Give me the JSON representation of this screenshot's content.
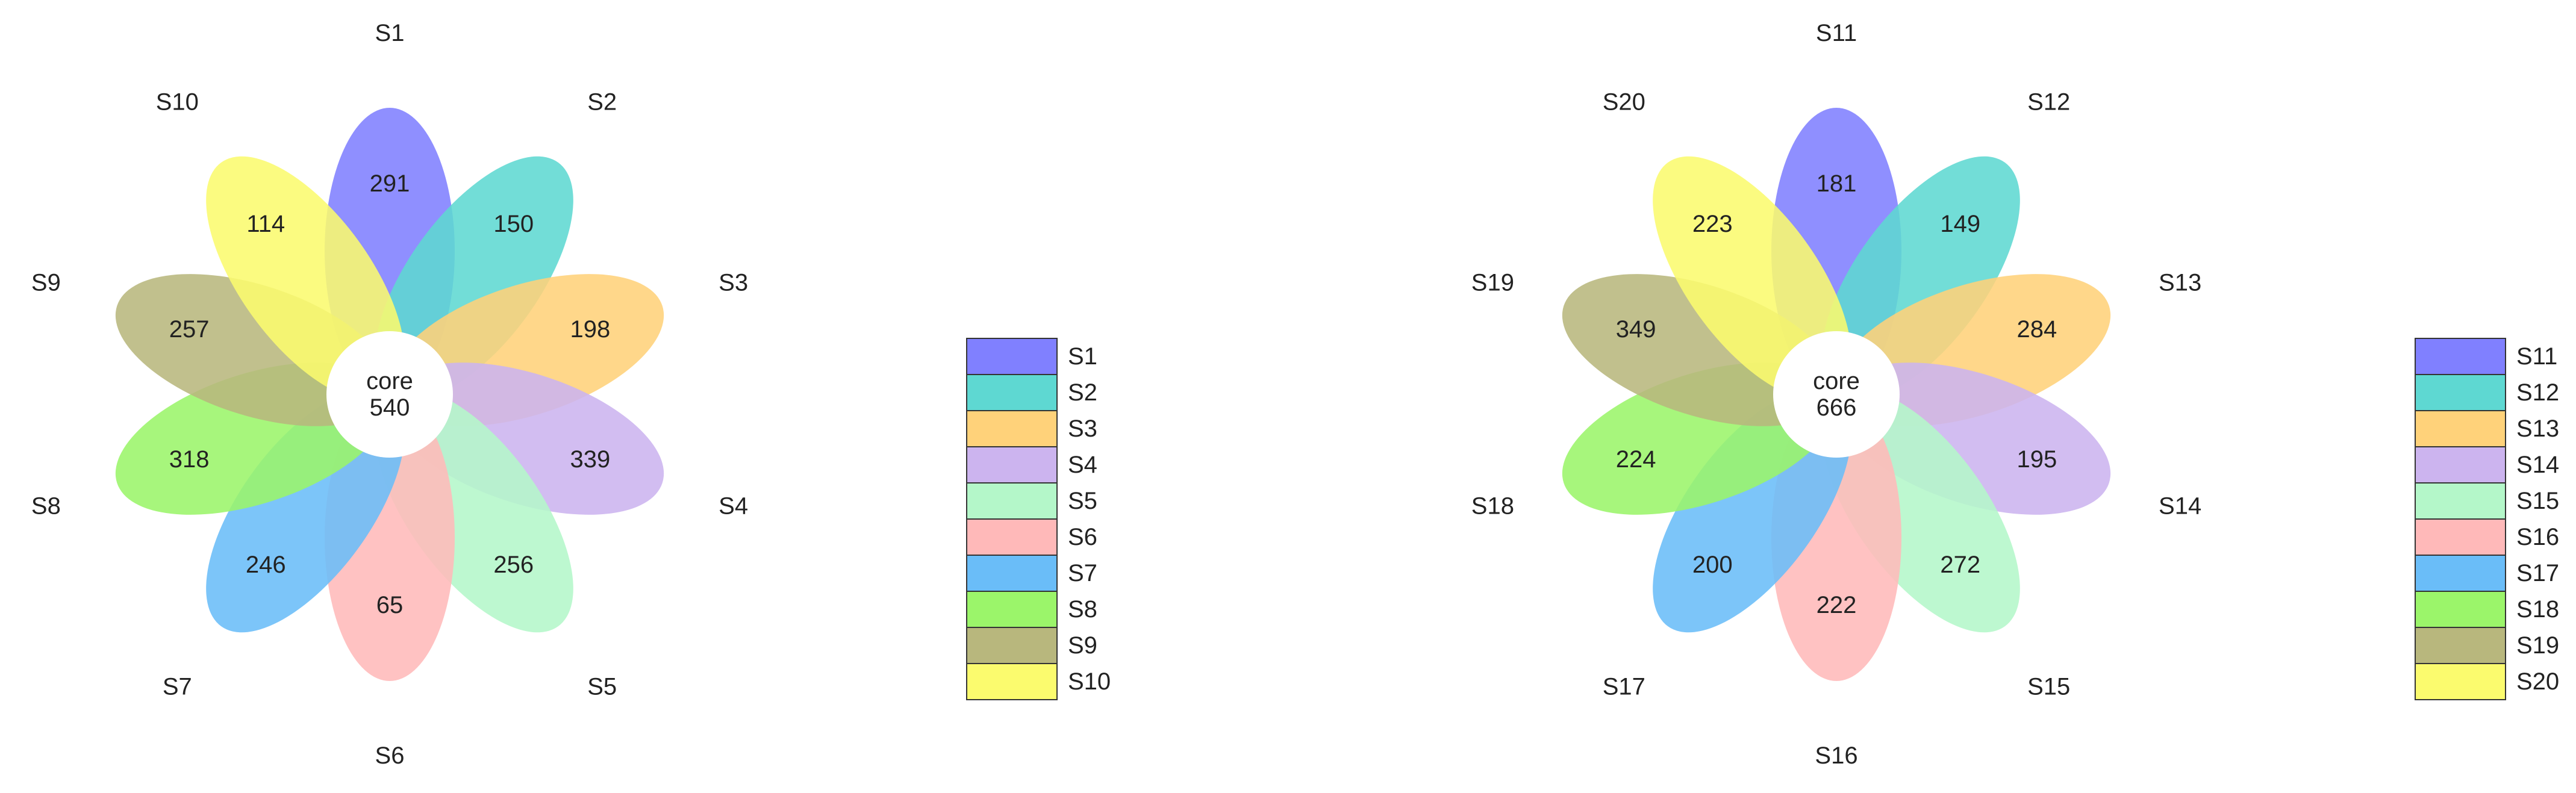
{
  "chart_data": [
    {
      "type": "venn-flower",
      "core": {
        "label": "core",
        "value": 540
      },
      "petals": [
        {
          "name": "S1",
          "unique": 291,
          "color": "#8080ff"
        },
        {
          "name": "S2",
          "unique": 150,
          "color": "#5ed8d2"
        },
        {
          "name": "S3",
          "unique": 198,
          "color": "#ffd27a"
        },
        {
          "name": "S4",
          "unique": 339,
          "color": "#ccb4ef"
        },
        {
          "name": "S5",
          "unique": 256,
          "color": "#b4f7c9"
        },
        {
          "name": "S6",
          "unique": 65,
          "color": "#ffb9b9"
        },
        {
          "name": "S7",
          "unique": 246,
          "color": "#6abdf8"
        },
        {
          "name": "S8",
          "unique": 318,
          "color": "#9bf56a"
        },
        {
          "name": "S9",
          "unique": 257,
          "color": "#b8b77d"
        },
        {
          "name": "S10",
          "unique": 114,
          "color": "#fbfb6e"
        }
      ],
      "legend": [
        "S1",
        "S2",
        "S3",
        "S4",
        "S5",
        "S6",
        "S7",
        "S8",
        "S9",
        "S10"
      ]
    },
    {
      "type": "venn-flower",
      "core": {
        "label": "core",
        "value": 666
      },
      "petals": [
        {
          "name": "S11",
          "unique": 181,
          "color": "#8080ff"
        },
        {
          "name": "S12",
          "unique": 149,
          "color": "#5ed8d2"
        },
        {
          "name": "S13",
          "unique": 284,
          "color": "#ffd27a"
        },
        {
          "name": "S14",
          "unique": 195,
          "color": "#ccb4ef"
        },
        {
          "name": "S15",
          "unique": 272,
          "color": "#b4f7c9"
        },
        {
          "name": "S16",
          "unique": 222,
          "color": "#ffb9b9"
        },
        {
          "name": "S17",
          "unique": 200,
          "color": "#6abdf8"
        },
        {
          "name": "S18",
          "unique": 224,
          "color": "#9bf56a"
        },
        {
          "name": "S19",
          "unique": 349,
          "color": "#b8b77d"
        },
        {
          "name": "S20",
          "unique": 223,
          "color": "#fbfb6e"
        }
      ],
      "legend": [
        "S11",
        "S12",
        "S13",
        "S14",
        "S15",
        "S16",
        "S17",
        "S18",
        "S19",
        "S20"
      ]
    }
  ]
}
